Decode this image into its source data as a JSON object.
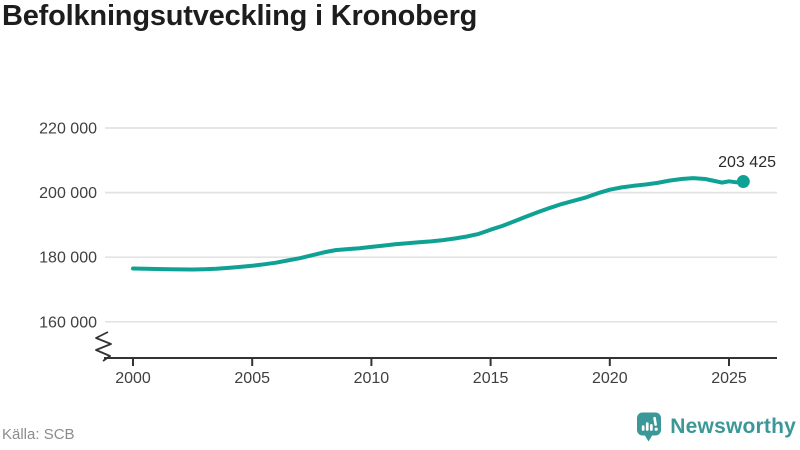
{
  "header": {
    "title": "Befolkningsutveckling i Kronoberg"
  },
  "footer": {
    "source": "Källa: SCB",
    "logo_text": "Newsworthy"
  },
  "colors": {
    "line": "#0fa294",
    "dot": "#0fa294",
    "grid": "#e3e3e3",
    "axis": "#333333",
    "tick_label": "#404040",
    "title": "#1d1d1d",
    "annotation": "#2b2b2b",
    "source": "#8c8c8c",
    "logo": "#3c9898"
  },
  "chart_data": {
    "type": "line",
    "title": "Befolkningsutveckling i Kronoberg",
    "source": "Källa: SCB",
    "grid": "horizontal-only",
    "legend": "none",
    "axis_break_bottom_left": true,
    "x_range": [
      1998.8,
      2027.0
    ],
    "y_ticks": [
      {
        "value": 160000,
        "label": "160 000"
      },
      {
        "value": 180000,
        "label": "180 000"
      },
      {
        "value": 200000,
        "label": "200 000"
      },
      {
        "value": 220000,
        "label": "220 000"
      }
    ],
    "x_ticks": [
      {
        "value": 2000,
        "label": "2000"
      },
      {
        "value": 2005,
        "label": "2005"
      },
      {
        "value": 2010,
        "label": "2010"
      },
      {
        "value": 2015,
        "label": "2015"
      },
      {
        "value": 2020,
        "label": "2020"
      },
      {
        "value": 2025,
        "label": "2025"
      }
    ],
    "series": [
      {
        "points": [
          [
            2000.0,
            176500
          ],
          [
            2000.5,
            176420
          ],
          [
            2001.0,
            176350
          ],
          [
            2001.5,
            176280
          ],
          [
            2002.0,
            176230
          ],
          [
            2002.5,
            176200
          ],
          [
            2003.0,
            176280
          ],
          [
            2003.5,
            176450
          ],
          [
            2004.0,
            176700
          ],
          [
            2004.5,
            177000
          ],
          [
            2005.0,
            177350
          ],
          [
            2005.5,
            177800
          ],
          [
            2006.0,
            178300
          ],
          [
            2006.5,
            179000
          ],
          [
            2007.0,
            179700
          ],
          [
            2007.5,
            180600
          ],
          [
            2008.0,
            181500
          ],
          [
            2008.5,
            182200
          ],
          [
            2009.0,
            182500
          ],
          [
            2009.5,
            182800
          ],
          [
            2010.0,
            183200
          ],
          [
            2010.5,
            183600
          ],
          [
            2011.0,
            184000
          ],
          [
            2011.5,
            184300
          ],
          [
            2012.0,
            184600
          ],
          [
            2012.5,
            184900
          ],
          [
            2013.0,
            185300
          ],
          [
            2013.5,
            185800
          ],
          [
            2014.0,
            186400
          ],
          [
            2014.5,
            187200
          ],
          [
            2015.0,
            188500
          ],
          [
            2015.5,
            189700
          ],
          [
            2016.0,
            191100
          ],
          [
            2016.5,
            192600
          ],
          [
            2017.0,
            194000
          ],
          [
            2017.5,
            195300
          ],
          [
            2018.0,
            196500
          ],
          [
            2018.5,
            197500
          ],
          [
            2019.0,
            198500
          ],
          [
            2019.5,
            199800
          ],
          [
            2020.0,
            200900
          ],
          [
            2020.5,
            201600
          ],
          [
            2021.0,
            202100
          ],
          [
            2021.5,
            202500
          ],
          [
            2022.0,
            203000
          ],
          [
            2022.5,
            203700
          ],
          [
            2023.0,
            204200
          ],
          [
            2023.5,
            204500
          ],
          [
            2024.0,
            204200
          ],
          [
            2024.4,
            203600
          ],
          [
            2024.7,
            203100
          ],
          [
            2025.0,
            203500
          ],
          [
            2025.3,
            203200
          ],
          [
            2025.6,
            203425
          ]
        ]
      }
    ],
    "end_point": {
      "x": 2025.6,
      "value": 203425,
      "label": "203 425"
    }
  }
}
